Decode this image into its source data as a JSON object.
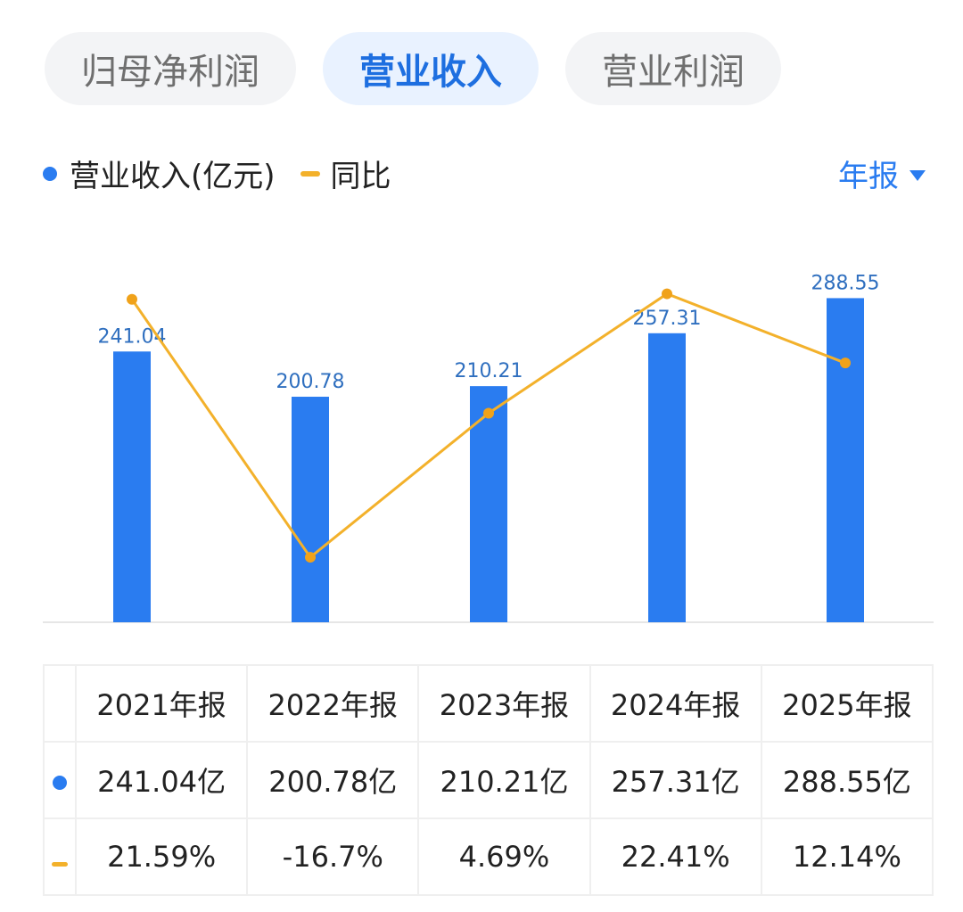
{
  "tabs": [
    {
      "label": "归母净利润",
      "active": false
    },
    {
      "label": "营业收入",
      "active": true
    },
    {
      "label": "营业利润",
      "active": false
    }
  ],
  "legend": {
    "series1": "营业收入(亿元)",
    "series2": "同比"
  },
  "period_selector": "年报",
  "colors": {
    "bar": "#2a7cf0",
    "line": "#f3b12b",
    "positive": "#e04a4a",
    "negative": "#27a35a"
  },
  "chart_data": {
    "type": "bar",
    "categories": [
      "2021年报",
      "2022年报",
      "2023年报",
      "2024年报",
      "2025年报"
    ],
    "series": [
      {
        "name": "营业收入(亿元)",
        "type": "bar",
        "values": [
          241.04,
          200.78,
          210.21,
          257.31,
          288.55
        ]
      },
      {
        "name": "同比",
        "type": "line",
        "values": [
          21.59,
          -16.7,
          4.69,
          22.41,
          12.14
        ],
        "unit": "%"
      }
    ],
    "bar_labels": [
      "241.04",
      "200.78",
      "210.21",
      "257.31",
      "288.55"
    ],
    "ylim_bar": [
      0,
      300
    ],
    "ylim_line": [
      -20,
      25
    ]
  },
  "table": {
    "headers": [
      "2021年报",
      "2022年报",
      "2023年报",
      "2024年报",
      "2025年报"
    ],
    "revenue": [
      "241.04亿",
      "200.78亿",
      "210.21亿",
      "257.31亿",
      "288.55亿"
    ],
    "yoy": [
      "21.59%",
      "-16.7%",
      "4.69%",
      "22.41%",
      "12.14%"
    ]
  }
}
